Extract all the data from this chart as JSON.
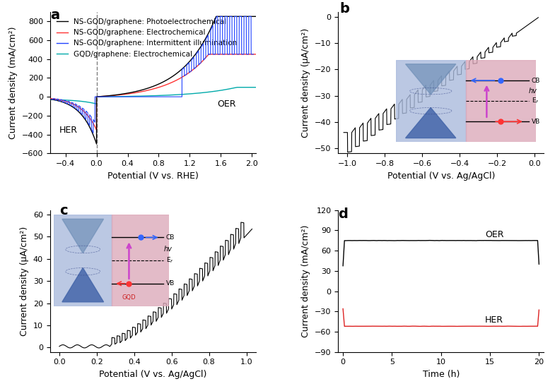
{
  "panel_a": {
    "title": "a",
    "xlabel": "Potential (V vs. RHE)",
    "ylabel": "Current density (mA/cm²)",
    "xlim": [
      -0.6,
      2.05
    ],
    "ylim": [
      -600,
      900
    ],
    "yticks": [
      -600,
      -400,
      -200,
      0,
      200,
      400,
      600,
      800
    ],
    "xticks": [
      -0.4,
      0.0,
      0.4,
      0.8,
      1.2,
      1.6,
      2.0
    ],
    "legend": [
      "NS-GQD/graphene: Photoelectrochemical",
      "NS-GQD/graphene: Electrochemical",
      "NS-GQD/graphene: Intermittent illumination",
      "GQD/graphene: Electrochemical"
    ],
    "colors": [
      "#000000",
      "#ff2222",
      "#2222ff",
      "#00aaaa"
    ],
    "her_label": "HER",
    "oer_label": "OER",
    "vline_x": 0.0
  },
  "panel_b": {
    "title": "b",
    "xlabel": "Potential (V vs. Ag/AgCl)",
    "ylabel": "Current density (μA/cm²)",
    "xlim": [
      -1.05,
      0.05
    ],
    "ylim": [
      -52,
      2
    ],
    "yticks": [
      0,
      -10,
      -20,
      -30,
      -40,
      -50
    ],
    "xticks": [
      -1.0,
      -0.8,
      -0.6,
      -0.4,
      -0.2,
      0.0
    ]
  },
  "panel_c": {
    "title": "c",
    "xlabel": "Potential (V vs. Ag/AgCl)",
    "ylabel": "Current density (μA/cm²)",
    "xlim": [
      -0.05,
      1.05
    ],
    "ylim": [
      -2,
      62
    ],
    "yticks": [
      0,
      10,
      20,
      30,
      40,
      50,
      60
    ],
    "xticks": [
      0.0,
      0.2,
      0.4,
      0.6,
      0.8,
      1.0
    ]
  },
  "panel_d": {
    "title": "d",
    "xlabel": "Time (h)",
    "ylabel": "Current density (mA/cm²)",
    "xlim": [
      -0.5,
      20.5
    ],
    "ylim": [
      -90,
      120
    ],
    "yticks": [
      -90,
      -60,
      -30,
      0,
      30,
      60,
      90,
      120
    ],
    "xticks": [
      0,
      5,
      10,
      15,
      20
    ],
    "oer_color": "#000000",
    "her_color": "#dd2222",
    "oer_label": "OER",
    "her_label": "HER",
    "oer_value": 75,
    "her_value": -52
  },
  "panel_label_fontsize": 14,
  "axis_label_fontsize": 9,
  "tick_fontsize": 8,
  "legend_fontsize": 7.5
}
